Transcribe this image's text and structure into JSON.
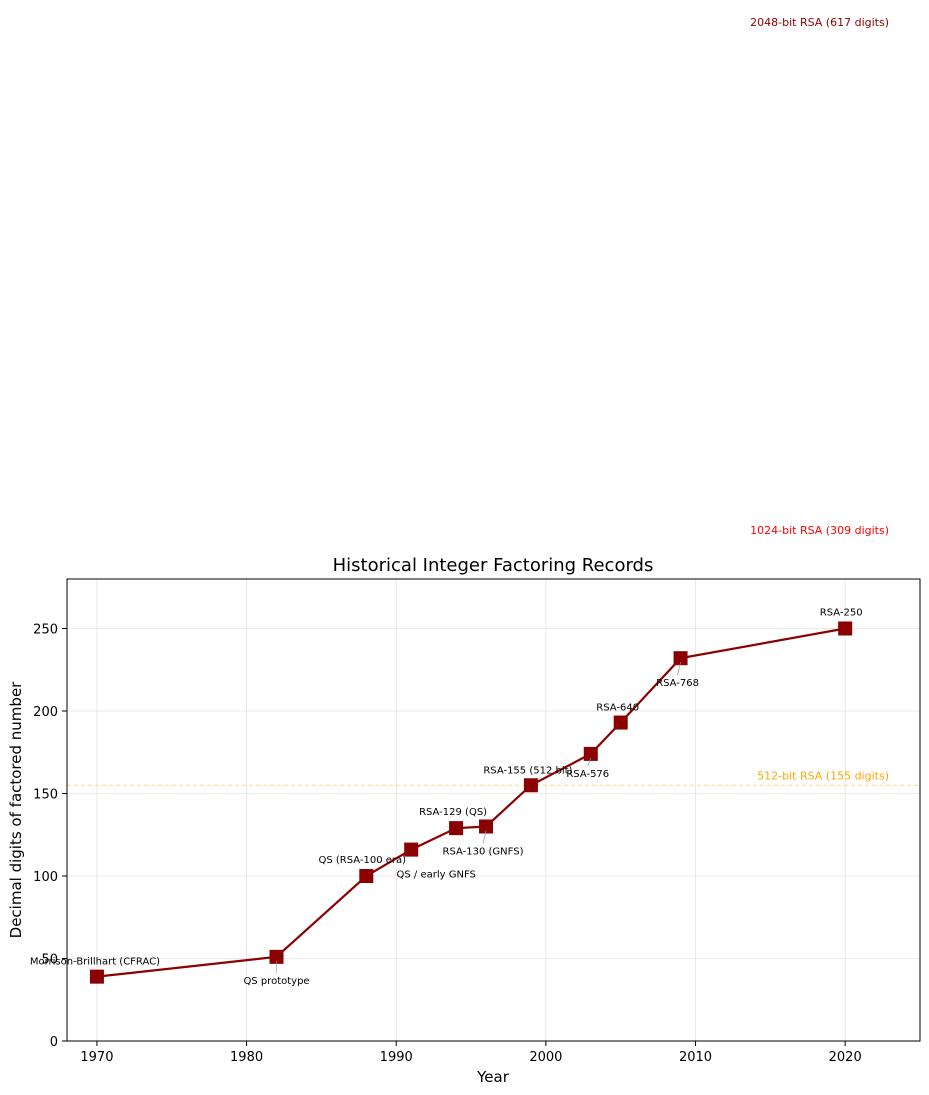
{
  "chart_data": {
    "type": "line",
    "title": "Historical Integer Factoring Records",
    "xlabel": "Year",
    "ylabel": "Decimal digits of factored number",
    "xlim": [
      1968,
      2025
    ],
    "ylim": [
      0,
      280
    ],
    "xticks": [
      "1970",
      "1980",
      "1990",
      "2000",
      "2010",
      "2020"
    ],
    "yticks": [
      "0",
      "50",
      "100",
      "150",
      "200",
      "250"
    ],
    "grid": true,
    "series": [
      {
        "color": "#8b0000",
        "marker": "square",
        "points": [
          {
            "x": 1970,
            "y": 39,
            "label": "Morrison-Brillhart (CFRAC)"
          },
          {
            "x": 1982,
            "y": 51,
            "label": "QS prototype"
          },
          {
            "x": 1988,
            "y": 100,
            "label": "QS (RSA-100 era)"
          },
          {
            "x": 1991,
            "y": 116,
            "label": "QS / early GNFS"
          },
          {
            "x": 1994,
            "y": 129,
            "label": "RSA-129 (QS)"
          },
          {
            "x": 1996,
            "y": 130,
            "label": "RSA-130 (GNFS)"
          },
          {
            "x": 1999,
            "y": 155,
            "label": "RSA-155 (512 bit)"
          },
          {
            "x": 2003,
            "y": 174,
            "label": "RSA-576"
          },
          {
            "x": 2005,
            "y": 193,
            "label": "RSA-640"
          },
          {
            "x": 2009,
            "y": 232,
            "label": "RSA-768"
          },
          {
            "x": 2020,
            "y": 250,
            "label": "RSA-250"
          }
        ]
      }
    ],
    "reference_lines": [
      {
        "y": 155,
        "label": "512-bit RSA (155 digits)",
        "color": "#ffa500"
      },
      {
        "y": 309,
        "label": "1024-bit RSA (309 digits)",
        "color": "#ff0000"
      },
      {
        "y": 617,
        "label": "2048-bit RSA (617 digits)",
        "color": "#8b0000"
      }
    ]
  }
}
